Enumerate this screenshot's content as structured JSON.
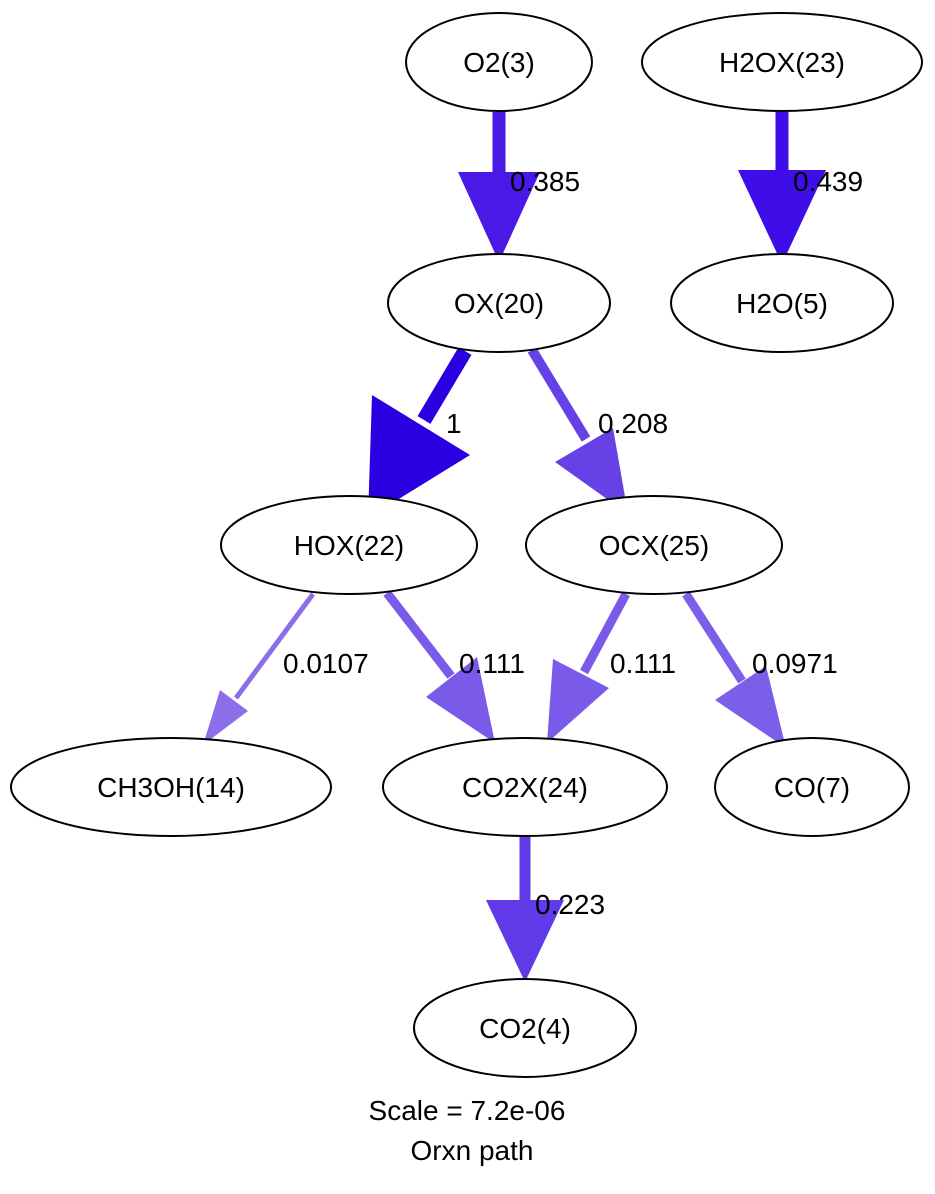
{
  "nodes": {
    "o2": "O2(3)",
    "h2ox": "H2OX(23)",
    "ox": "OX(20)",
    "h2o": "H2O(5)",
    "hox": "HOX(22)",
    "ocx": "OCX(25)",
    "ch3oh": "CH3OH(14)",
    "co2x": "CO2X(24)",
    "co": "CO(7)",
    "co2": "CO2(4)"
  },
  "edges": {
    "o2_ox": {
      "label": "0.385",
      "color": "#4a19e6"
    },
    "h2ox_h2o": {
      "label": "0.439",
      "color": "#3f0de8"
    },
    "ox_hox": {
      "label": "1",
      "color": "#2b00e0"
    },
    "ox_ocx": {
      "label": "0.208",
      "color": "#6642e6"
    },
    "hox_ch3oh": {
      "label": "0.0107",
      "color": "#8b6ee8"
    },
    "hox_co2x": {
      "label": "0.111",
      "color": "#7a5ae8"
    },
    "ocx_co2x": {
      "label": "0.111",
      "color": "#7a5ae8"
    },
    "ocx_co": {
      "label": "0.0971",
      "color": "#7b5fe8"
    },
    "co2x_co2": {
      "label": "0.223",
      "color": "#5f3ae6"
    }
  },
  "caption": {
    "line1": "Scale = 7.2e-06",
    "line2": "Orxn path"
  }
}
